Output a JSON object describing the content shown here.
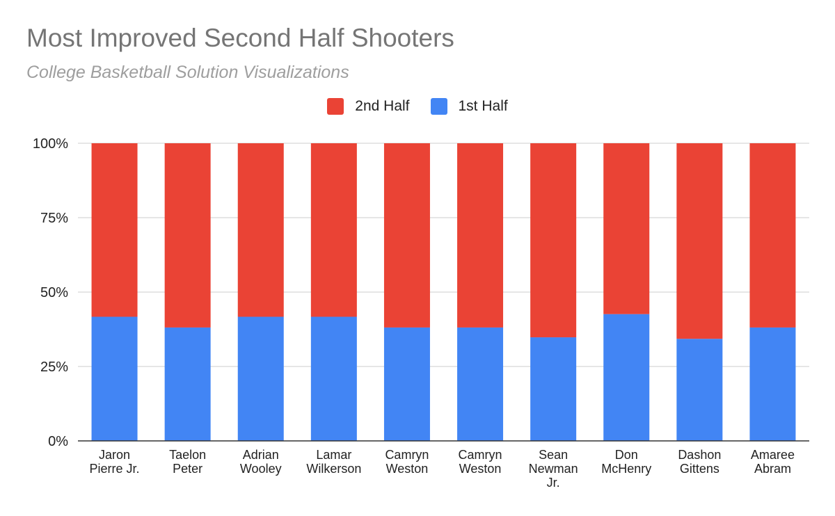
{
  "chart_data": {
    "type": "bar",
    "stacked": "percent",
    "title": "Most Improved Second Half Shooters",
    "subtitle": "College Basketball Solution Visualizations",
    "categories": [
      [
        "Jaron",
        "Pierre Jr."
      ],
      [
        "Taelon",
        "Peter"
      ],
      [
        "Adrian",
        "Wooley"
      ],
      [
        "Lamar",
        "Wilkerson"
      ],
      [
        "Camryn",
        "Weston"
      ],
      [
        "Camryn",
        "Weston"
      ],
      [
        "Sean",
        "Newman",
        "Jr."
      ],
      [
        "Don",
        "McHenry"
      ],
      [
        "Dashon",
        "Gittens"
      ],
      [
        "Amaree",
        "Abram"
      ]
    ],
    "series": [
      {
        "name": "1st Half",
        "color": "#4285f4",
        "values": [
          41.7,
          38.1,
          41.7,
          41.7,
          38.1,
          38.1,
          34.8,
          42.6,
          34.3,
          38.1
        ]
      },
      {
        "name": "2nd Half",
        "color": "#ea4335",
        "values": [
          58.3,
          61.9,
          58.3,
          58.3,
          61.9,
          61.9,
          65.2,
          57.4,
          65.7,
          61.9
        ]
      }
    ],
    "legend_order": [
      "2nd Half",
      "1st Half"
    ],
    "legend_position": "top",
    "yticks": [
      "0%",
      "25%",
      "50%",
      "75%",
      "100%"
    ],
    "ylim": [
      0,
      100
    ],
    "grid": true
  }
}
